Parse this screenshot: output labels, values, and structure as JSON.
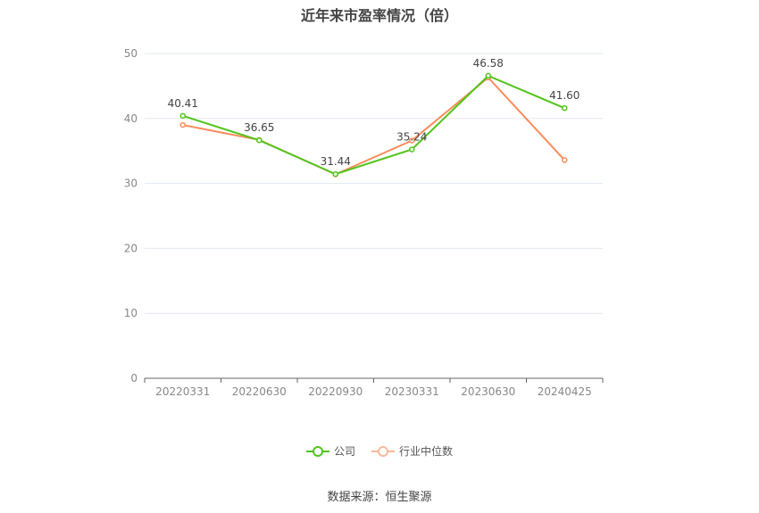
{
  "chart_data": {
    "type": "line",
    "title": "近年来市盈率情况（倍）",
    "categories": [
      "20220331",
      "20220630",
      "20220930",
      "20230331",
      "20230630",
      "20240425"
    ],
    "ylim": [
      0,
      50
    ],
    "yticks": [
      0,
      10,
      20,
      30,
      40,
      50
    ],
    "grid": true,
    "legend_position": "bottom",
    "series": [
      {
        "name": "公司",
        "color": "#52c41a",
        "values": [
          40.41,
          36.65,
          31.44,
          35.24,
          46.58,
          41.6
        ],
        "labels": [
          "40.41",
          "36.65",
          "31.44",
          "35.24",
          "46.58",
          "41.60"
        ]
      },
      {
        "name": "行业中位数",
        "color": "#fa8c5a",
        "values": [
          39.0,
          36.7,
          31.4,
          36.6,
          46.3,
          33.6
        ]
      }
    ]
  },
  "source": "数据来源：恒生聚源"
}
